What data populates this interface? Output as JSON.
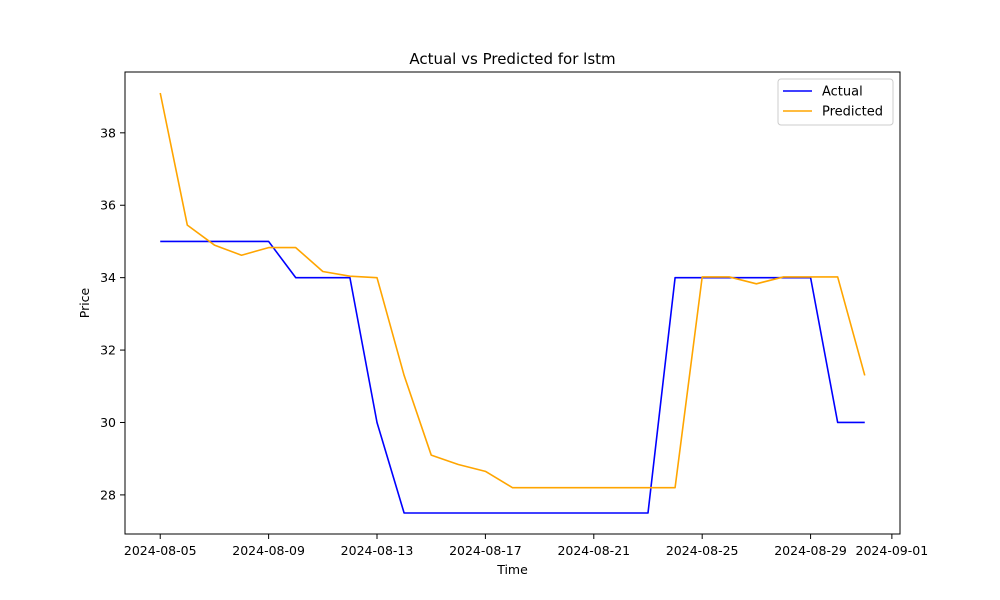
{
  "chart_data": {
    "type": "line",
    "title": "Actual vs Predicted for lstm",
    "xlabel": "Time",
    "ylabel": "Price",
    "x": [
      "2024-08-05",
      "2024-08-06",
      "2024-08-07",
      "2024-08-08",
      "2024-08-09",
      "2024-08-10",
      "2024-08-11",
      "2024-08-12",
      "2024-08-13",
      "2024-08-14",
      "2024-08-15",
      "2024-08-16",
      "2024-08-17",
      "2024-08-18",
      "2024-08-19",
      "2024-08-20",
      "2024-08-21",
      "2024-08-22",
      "2024-08-23",
      "2024-08-24",
      "2024-08-25",
      "2024-08-26",
      "2024-08-27",
      "2024-08-28",
      "2024-08-29",
      "2024-08-30",
      "2024-08-31"
    ],
    "series": [
      {
        "name": "Actual",
        "color": "#0000ff",
        "values": [
          35.0,
          35.0,
          35.0,
          35.0,
          35.0,
          34.0,
          34.0,
          34.0,
          30.0,
          27.5,
          27.5,
          27.5,
          27.5,
          27.5,
          27.5,
          27.5,
          27.5,
          27.5,
          27.5,
          34.0,
          34.0,
          34.0,
          34.0,
          34.0,
          34.0,
          30.0,
          30.0
        ]
      },
      {
        "name": "Predicted",
        "color": "#ffa500",
        "values": [
          39.1,
          35.45,
          34.9,
          34.62,
          34.83,
          34.83,
          34.17,
          34.04,
          34.0,
          31.3,
          29.1,
          28.84,
          28.65,
          28.2,
          28.2,
          28.2,
          28.2,
          28.2,
          28.2,
          28.2,
          34.02,
          34.02,
          33.83,
          34.02,
          34.02,
          34.02,
          31.3
        ]
      }
    ],
    "xticks": [
      "2024-08-05",
      "2024-08-09",
      "2024-08-13",
      "2024-08-17",
      "2024-08-21",
      "2024-08-25",
      "2024-08-29",
      "2024-09-01"
    ],
    "yticks": [
      28,
      30,
      32,
      34,
      36,
      38
    ],
    "xlim": [
      "2024-08-03 16:48",
      "2024-09-01 07:12"
    ],
    "ylim": [
      26.92,
      39.68
    ],
    "grid": false,
    "legend_position": "top-right"
  }
}
